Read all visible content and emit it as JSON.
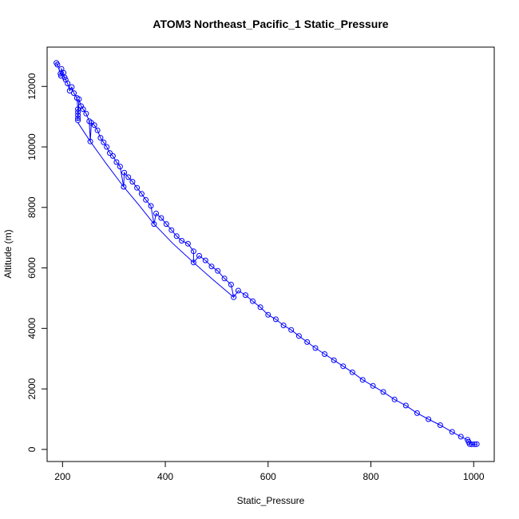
{
  "chart_data": {
    "type": "scatter",
    "title": "ATOM3 Northeast_Pacific_1 Static_Pressure",
    "xlabel": "Static_Pressure",
    "ylabel": "Altitude (m)",
    "xlim": [
      170,
      1040
    ],
    "ylim": [
      -400,
      13300
    ],
    "x_ticks": [
      200,
      400,
      600,
      800,
      1000
    ],
    "y_ticks": [
      0,
      2000,
      4000,
      6000,
      8000,
      10000,
      12000
    ],
    "grid": false,
    "legend": "none",
    "marker": "open-circle",
    "color": "#0000ff",
    "series": [
      {
        "points": [
          {
            "x": 188,
            "y": 12780
          },
          {
            "x": 190,
            "y": 12720
          },
          {
            "x": 196,
            "y": 12420
          },
          {
            "x": 197,
            "y": 12350
          },
          {
            "x": 198,
            "y": 12580
          },
          {
            "x": 202,
            "y": 12450
          },
          {
            "x": 204,
            "y": 12300
          },
          {
            "x": 206,
            "y": 12220
          },
          {
            "x": 210,
            "y": 12100
          },
          {
            "x": 214,
            "y": 11860
          },
          {
            "x": 218,
            "y": 11980
          },
          {
            "x": 222,
            "y": 11780
          },
          {
            "x": 228,
            "y": 11620
          },
          {
            "x": 232,
            "y": 11580
          },
          {
            "x": 236,
            "y": 11350
          },
          {
            "x": 240,
            "y": 11250
          },
          {
            "x": 246,
            "y": 11100
          },
          {
            "x": 252,
            "y": 10850
          },
          {
            "x": 256,
            "y": 10800
          },
          {
            "x": 262,
            "y": 10720
          },
          {
            "x": 268,
            "y": 10550
          },
          {
            "x": 274,
            "y": 10300
          },
          {
            "x": 280,
            "y": 10150
          },
          {
            "x": 286,
            "y": 10000
          },
          {
            "x": 292,
            "y": 9800
          },
          {
            "x": 298,
            "y": 9700
          },
          {
            "x": 305,
            "y": 9500
          },
          {
            "x": 312,
            "y": 9350
          },
          {
            "x": 320,
            "y": 9150
          },
          {
            "x": 328,
            "y": 9000
          },
          {
            "x": 336,
            "y": 8850
          },
          {
            "x": 345,
            "y": 8650
          },
          {
            "x": 354,
            "y": 8450
          },
          {
            "x": 362,
            "y": 8250
          },
          {
            "x": 372,
            "y": 8050
          },
          {
            "x": 382,
            "y": 7800
          },
          {
            "x": 392,
            "y": 7650
          },
          {
            "x": 402,
            "y": 7450
          },
          {
            "x": 412,
            "y": 7250
          },
          {
            "x": 422,
            "y": 7050
          },
          {
            "x": 432,
            "y": 6900
          },
          {
            "x": 444,
            "y": 6800
          },
          {
            "x": 455,
            "y": 6550
          },
          {
            "x": 466,
            "y": 6400
          },
          {
            "x": 478,
            "y": 6250
          },
          {
            "x": 490,
            "y": 6050
          },
          {
            "x": 502,
            "y": 5900
          },
          {
            "x": 515,
            "y": 5650
          },
          {
            "x": 528,
            "y": 5450
          },
          {
            "x": 542,
            "y": 5250
          },
          {
            "x": 556,
            "y": 5100
          },
          {
            "x": 570,
            "y": 4900
          },
          {
            "x": 585,
            "y": 4700
          },
          {
            "x": 600,
            "y": 4450
          },
          {
            "x": 615,
            "y": 4300
          },
          {
            "x": 630,
            "y": 4100
          },
          {
            "x": 645,
            "y": 3950
          },
          {
            "x": 660,
            "y": 3750
          },
          {
            "x": 676,
            "y": 3550
          },
          {
            "x": 692,
            "y": 3350
          },
          {
            "x": 710,
            "y": 3150
          },
          {
            "x": 728,
            "y": 2950
          },
          {
            "x": 746,
            "y": 2750
          },
          {
            "x": 764,
            "y": 2550
          },
          {
            "x": 784,
            "y": 2300
          },
          {
            "x": 804,
            "y": 2100
          },
          {
            "x": 824,
            "y": 1900
          },
          {
            "x": 846,
            "y": 1650
          },
          {
            "x": 868,
            "y": 1450
          },
          {
            "x": 890,
            "y": 1200
          },
          {
            "x": 912,
            "y": 1000
          },
          {
            "x": 935,
            "y": 800
          },
          {
            "x": 958,
            "y": 580
          },
          {
            "x": 975,
            "y": 420
          },
          {
            "x": 988,
            "y": 320
          },
          {
            "x": 990,
            "y": 250
          },
          {
            "x": 992,
            "y": 180
          },
          {
            "x": 996,
            "y": 170
          },
          {
            "x": 1002,
            "y": 170
          },
          {
            "x": 1006,
            "y": 175
          },
          {
            "x": 230,
            "y": 11250
          },
          {
            "x": 230,
            "y": 11150
          },
          {
            "x": 230,
            "y": 11050
          },
          {
            "x": 230,
            "y": 10950
          },
          {
            "x": 230,
            "y": 10880
          },
          {
            "x": 254,
            "y": 10180
          },
          {
            "x": 319,
            "y": 8680
          },
          {
            "x": 378,
            "y": 7450
          },
          {
            "x": 455,
            "y": 6180
          },
          {
            "x": 533,
            "y": 5030
          }
        ]
      },
      {
        "points": [
          {
            "x": 230,
            "y": 10800
          },
          {
            "x": 254,
            "y": 10180
          },
          {
            "x": 285,
            "y": 9450
          },
          {
            "x": 319,
            "y": 8680
          },
          {
            "x": 350,
            "y": 8050
          },
          {
            "x": 378,
            "y": 7450
          },
          {
            "x": 415,
            "y": 6800
          },
          {
            "x": 455,
            "y": 6180
          },
          {
            "x": 492,
            "y": 5620
          },
          {
            "x": 533,
            "y": 5030
          }
        ]
      }
    ]
  }
}
